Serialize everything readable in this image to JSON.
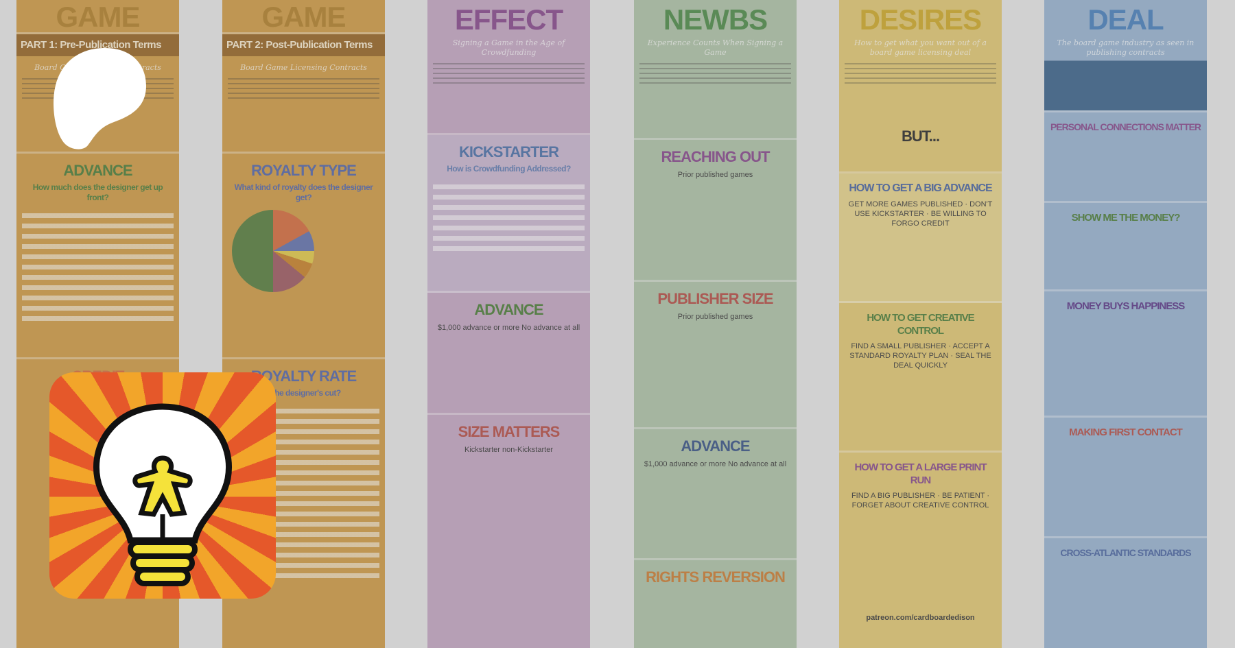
{
  "brand": {
    "logo": "patreon-logo",
    "app_icon": "lightbulb-meeple-icon"
  },
  "columns": [
    {
      "title": "GAME",
      "subtitle": "Board Game Licensing Contracts",
      "part": "PART 1: Pre-Publication Terms",
      "sections": [
        {
          "heading": "ADVANCE",
          "question": "How much does the designer get up front?"
        },
        {
          "heading": "CREDIT",
          "question": "How..."
        }
      ]
    },
    {
      "title": "GAME",
      "subtitle": "Board Game Licensing Contracts",
      "part": "PART 2: Post-Publication Terms",
      "sections": [
        {
          "heading": "ROYALTY TYPE",
          "question": "What kind of royalty does the designer get?"
        },
        {
          "heading": "ROYALTY RATE",
          "question": "...the designer's cut?"
        }
      ]
    },
    {
      "title": "EFFECT",
      "subtitle": "Signing a Game in the Age of Crowdfunding",
      "sections": [
        {
          "heading": "KICKSTARTER",
          "question": "How is Crowdfunding Addressed?"
        },
        {
          "heading": "ADVANCE",
          "question": "$1,000 advance or more    No advance at all"
        },
        {
          "heading": "SIZE MATTERS",
          "question": "Kickstarter    non-Kickstarter"
        }
      ]
    },
    {
      "title": "NEWBS",
      "subtitle": "Experience Counts When Signing a Game",
      "sections": [
        {
          "heading": "REACHING OUT",
          "question": "Prior published games"
        },
        {
          "heading": "PUBLISHER SIZE",
          "question": "Prior published games"
        },
        {
          "heading": "ADVANCE",
          "question": "$1,000 advance or more    No advance at all"
        },
        {
          "heading": "RIGHTS REVERSION",
          "question": ""
        }
      ]
    },
    {
      "title": "DESIRES",
      "subtitle": "How to get what you want out of a board game licensing deal",
      "extra": "BUT...",
      "sections": [
        {
          "heading": "HOW TO GET A BIG ADVANCE",
          "question": "GET MORE GAMES PUBLISHED · DON'T USE KICKSTARTER · BE WILLING TO FORGO CREDIT"
        },
        {
          "heading": "HOW TO GET CREATIVE CONTROL",
          "question": "FIND A SMALL PUBLISHER · ACCEPT A STANDARD ROYALTY PLAN · SEAL THE DEAL QUICKLY"
        },
        {
          "heading": "HOW TO GET A LARGE PRINT RUN",
          "question": "FIND A BIG PUBLISHER · BE PATIENT · FORGET ABOUT CREATIVE CONTROL"
        }
      ],
      "footer": "patreon.com/cardboardedison"
    },
    {
      "title": "DEAL",
      "subtitle": "The board game industry as seen in publishing contracts",
      "sections": [
        {
          "heading": "PERSONAL CONNECTIONS MATTER",
          "question": ""
        },
        {
          "heading": "SHOW ME THE MONEY?",
          "question": ""
        },
        {
          "heading": "MONEY BUYS HAPPINESS",
          "question": ""
        },
        {
          "heading": "MAKING FIRST CONTACT",
          "question": ""
        },
        {
          "heading": "CROSS-ATLANTIC STANDARDS",
          "question": ""
        }
      ]
    }
  ],
  "colors": {
    "orange": "#d4962e",
    "purple": "#c4a1c2",
    "green": "#a8bfa0",
    "yellow": "#e3c45e",
    "blue": "#8fb0d3",
    "backdrop": "#d4d4d4"
  }
}
